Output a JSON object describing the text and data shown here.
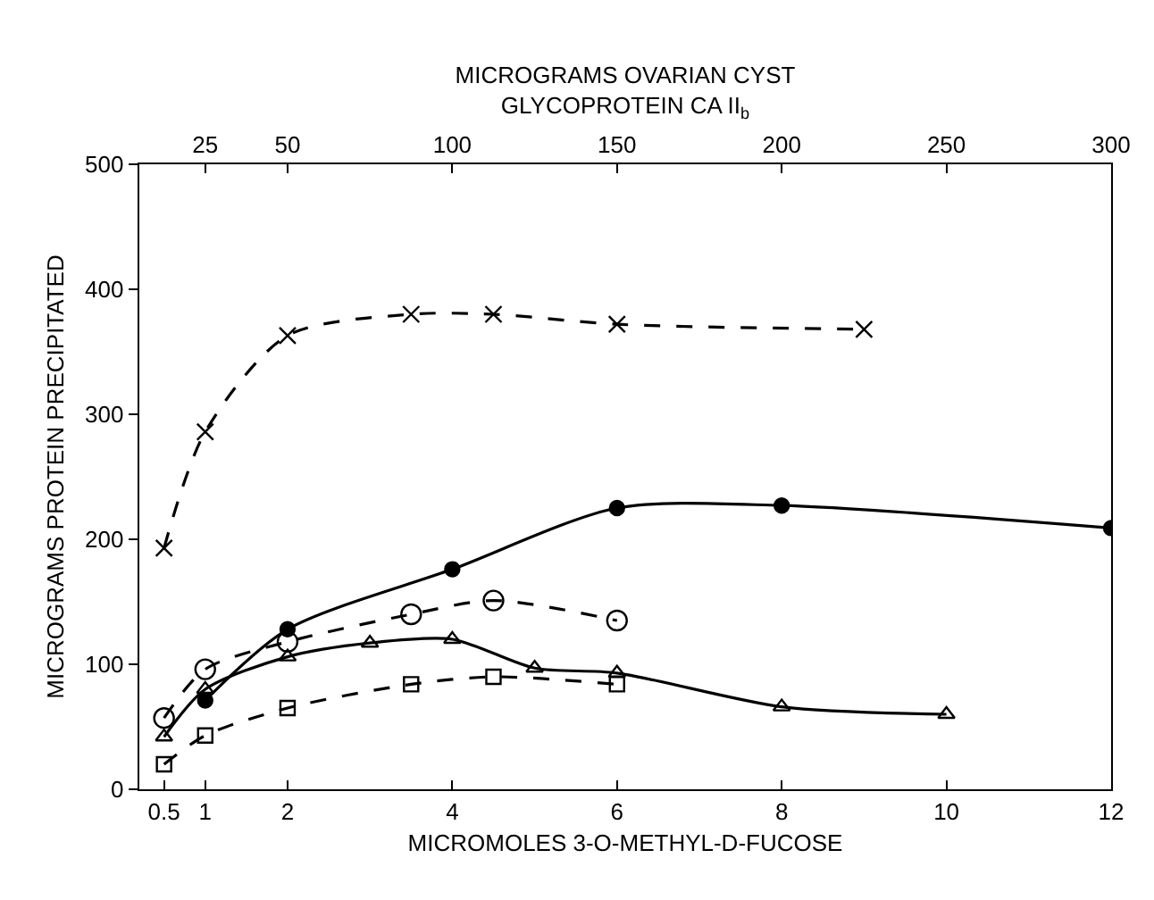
{
  "chart_data": {
    "type": "line",
    "xlabel": "MICROMOLES 3-O-METHYL-D-FUCOSE",
    "ylabel": "MICROGRAMS PROTEIN PRECIPITATED",
    "x2label": "MICROGRAMS OVARIAN CYST\nGLYCOPROTEIN CA II$_{b}$",
    "xlim": [
      0.2,
      12
    ],
    "xticks": [
      0.5,
      1,
      2,
      4,
      6,
      8,
      10,
      12
    ],
    "x2lim": [
      5,
      300
    ],
    "x2ticks": [
      25,
      50,
      100,
      150,
      200,
      250,
      300
    ],
    "ylim": [
      0,
      500
    ],
    "yticks": [
      0,
      100,
      200,
      300,
      400,
      500
    ],
    "grid": false,
    "series": [
      {
        "color": "#000000",
        "marker": "cross",
        "line_style": "dashed",
        "x": [
          0.5,
          1,
          2,
          3.5,
          4.5,
          6,
          9
        ],
        "values": [
          193,
          286,
          363,
          380,
          380,
          372,
          368
        ]
      },
      {
        "color": "#000000",
        "marker": "circle",
        "line_style": "solid",
        "x": [
          1,
          2,
          4,
          6,
          8,
          12
        ],
        "values": [
          71,
          128,
          176,
          225,
          227,
          209
        ]
      },
      {
        "color": "#000000",
        "marker": "circle-open",
        "line_style": "dashed",
        "x": [
          0.5,
          1,
          2,
          3.5,
          4.5,
          6
        ],
        "values": [
          57,
          96,
          118,
          140,
          151,
          135
        ]
      },
      {
        "color": "#000000",
        "marker": "triangle",
        "line_style": "solid",
        "x": [
          0.5,
          1,
          2,
          3,
          4,
          5,
          6,
          8,
          10
        ],
        "values": [
          42,
          80,
          106,
          117,
          120,
          97,
          93,
          66,
          60
        ]
      },
      {
        "color": "#000000",
        "marker": "square",
        "line_style": "dashed",
        "x": [
          0.5,
          1,
          2,
          3.5,
          4.5,
          6
        ],
        "values": [
          20,
          43,
          65,
          84,
          90,
          84
        ]
      }
    ]
  }
}
